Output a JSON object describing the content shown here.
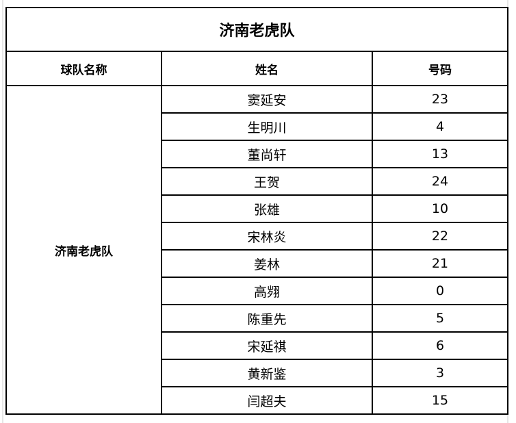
{
  "title": "济南老虎队",
  "headers": {
    "team": "球队名称",
    "name": "姓名",
    "number": "号码"
  },
  "team": "济南老虎队",
  "players": [
    {
      "name": "窦延安",
      "number": "23"
    },
    {
      "name": "生明川",
      "number": "4"
    },
    {
      "name": "董尚轩",
      "number": "13"
    },
    {
      "name": "王贺",
      "number": "24"
    },
    {
      "name": "张雄",
      "number": "10"
    },
    {
      "name": "宋林炎",
      "number": "22"
    },
    {
      "name": "姜林",
      "number": "21"
    },
    {
      "name": "高翙",
      "number": "0"
    },
    {
      "name": "陈重先",
      "number": "5"
    },
    {
      "name": "宋延祺",
      "number": "6"
    },
    {
      "name": "黄新鉴",
      "number": "3"
    },
    {
      "name": "闫超夫",
      "number": "15"
    }
  ]
}
